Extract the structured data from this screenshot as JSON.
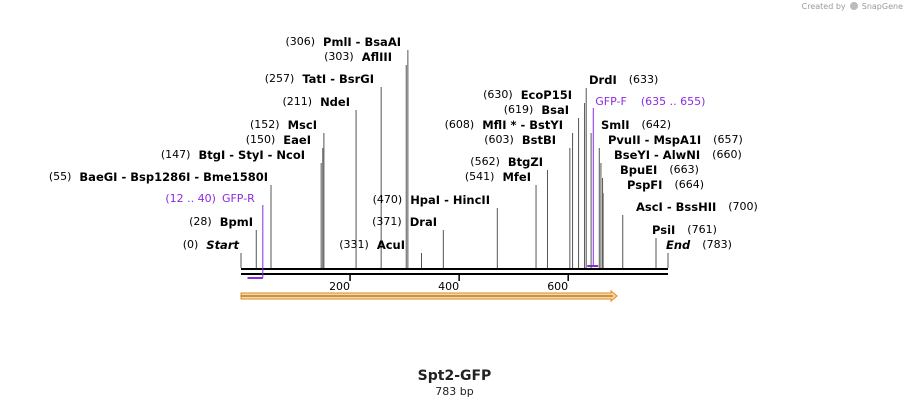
{
  "credit": {
    "prefix": "Created by",
    "brand": "SnapGene"
  },
  "sequence": {
    "name": "Spt2-GFP",
    "length_label": "783 bp",
    "length": 783
  },
  "colors": {
    "feature": "#8a2be2",
    "arrow_fill": "#f7d9a6",
    "arrow_stroke": "#e08a1e",
    "ink": "#000000"
  },
  "ticks": [
    {
      "pos": 200,
      "label": "200"
    },
    {
      "pos": 400,
      "label": "400"
    },
    {
      "pos": 600,
      "label": "600"
    }
  ],
  "primers": [
    {
      "name": "GFP-R",
      "range": "(12 .. 40)",
      "start": 12,
      "end": 40,
      "strand": "reverse"
    },
    {
      "name": "GFP-F",
      "range": "(635 .. 655)",
      "start": 635,
      "end": 655,
      "strand": "forward"
    }
  ],
  "sites": [
    {
      "pos": 0,
      "label": "Start",
      "num": "(0)",
      "kind": "terminus"
    },
    {
      "pos": 28,
      "label": "BpmI",
      "num": "(28)"
    },
    {
      "pos": 55,
      "label": "BaeGI - Bsp1286I - Bme1580I",
      "num": "(55)"
    },
    {
      "pos": 147,
      "label": "BtgI - StyI - NcoI",
      "num": "(147)"
    },
    {
      "pos": 150,
      "label": "EaeI",
      "num": "(150)"
    },
    {
      "pos": 152,
      "label": "MscI",
      "num": "(152)"
    },
    {
      "pos": 211,
      "label": "NdeI",
      "num": "(211)"
    },
    {
      "pos": 257,
      "label": "TatI - BsrGI",
      "num": "(257)"
    },
    {
      "pos": 303,
      "label": "AflIII",
      "num": "(303)"
    },
    {
      "pos": 306,
      "label": "PmlI - BsaAI",
      "num": "(306)"
    },
    {
      "pos": 331,
      "label": "AcuI",
      "num": "(331)"
    },
    {
      "pos": 371,
      "label": "DraI",
      "num": "(371)"
    },
    {
      "pos": 470,
      "label": "HpaI - HincII",
      "num": "(470)"
    },
    {
      "pos": 541,
      "label": "MfeI",
      "num": "(541)"
    },
    {
      "pos": 562,
      "label": "BtgZI",
      "num": "(562)"
    },
    {
      "pos": 603,
      "label": "BstBI",
      "num": "(603)"
    },
    {
      "pos": 608,
      "label": "MflI * - BstYI",
      "num": "(608)"
    },
    {
      "pos": 619,
      "label": "BsaI",
      "num": "(619)"
    },
    {
      "pos": 630,
      "label": "EcoP15I",
      "num": "(630)"
    },
    {
      "pos": 633,
      "label": "DrdI",
      "num": "(633)"
    },
    {
      "pos": 642,
      "label": "SmlI",
      "num": "(642)"
    },
    {
      "pos": 657,
      "label": "PvuII - MspA1I",
      "num": "(657)"
    },
    {
      "pos": 660,
      "label": "BseYI - AlwNI",
      "num": "(660)"
    },
    {
      "pos": 663,
      "label": "BpuEI",
      "num": "(663)"
    },
    {
      "pos": 664,
      "label": "PspFI",
      "num": "(664)"
    },
    {
      "pos": 700,
      "label": "AscI - BssHII",
      "num": "(700)"
    },
    {
      "pos": 761,
      "label": "PsiI",
      "num": "(761)"
    },
    {
      "pos": 783,
      "label": "End",
      "num": "(783)",
      "kind": "terminus"
    }
  ]
}
